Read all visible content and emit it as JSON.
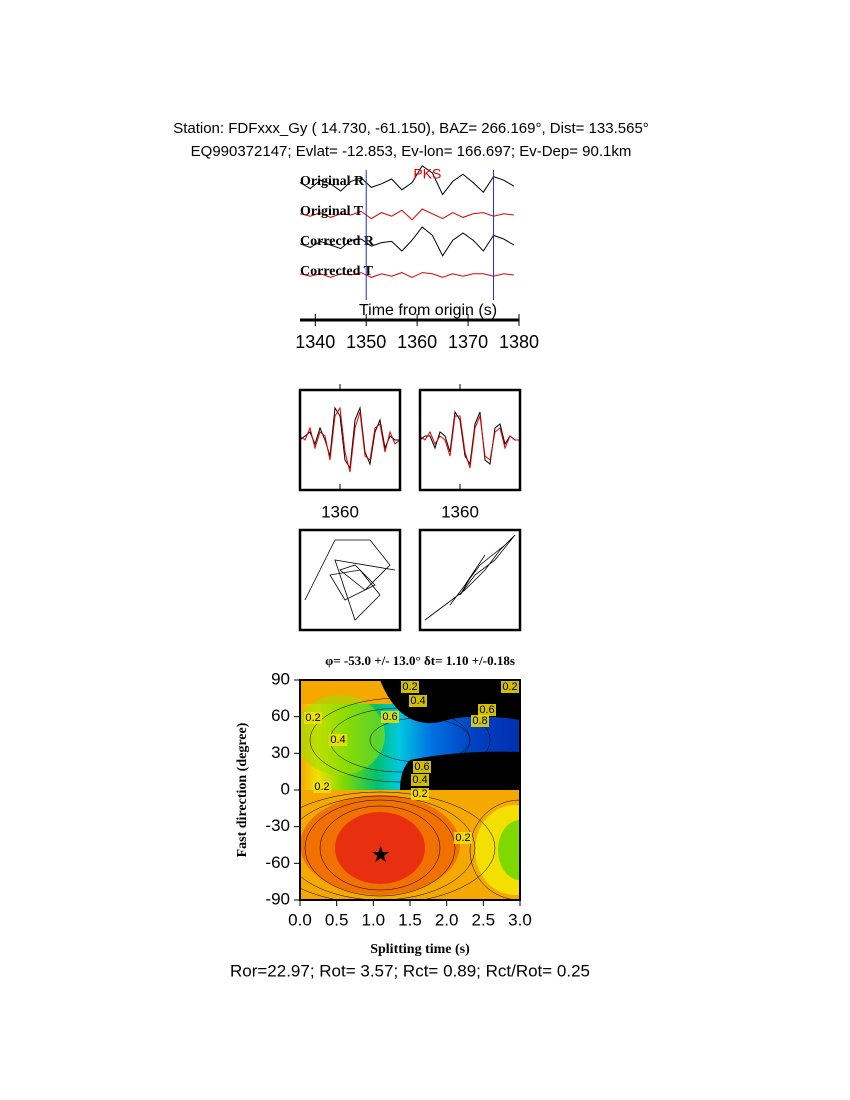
{
  "chart_data": [
    {
      "type": "line",
      "title": "Station: FDFxxx_Gy (  14.730,  -61.150), BAZ=  266.169°, Dist=  133.565°",
      "subtitle": "EQ990372147; Evlat= -12.853, Ev-lon= 166.697; Ev-Dep= 90.1km",
      "xlabel": "Time from origin (s)",
      "annotation": "PKS",
      "annotation_x": 1362,
      "markers": [
        1350,
        1375
      ],
      "xlim": [
        1337,
        1380
      ],
      "xticks": [
        1340,
        1350,
        1360,
        1370,
        1380
      ],
      "x": [
        1337,
        1339,
        1341,
        1343,
        1345,
        1347,
        1349,
        1351,
        1353,
        1355,
        1357,
        1359,
        1361,
        1363,
        1365,
        1367,
        1369,
        1371,
        1373,
        1375,
        1377,
        1379
      ],
      "series": [
        {
          "name": "Original R",
          "color": "#000000",
          "values": [
            0.2,
            -0.3,
            0.4,
            0.1,
            -0.5,
            0.3,
            0.6,
            -0.2,
            0.1,
            0.5,
            -0.4,
            0.2,
            1.6,
            1.0,
            -0.8,
            0.3,
            0.9,
            0.2,
            -0.6,
            0.7,
            0.4,
            -0.1
          ]
        },
        {
          "name": "Original T",
          "color": "#e00000",
          "values": [
            0.1,
            -0.1,
            0.2,
            -0.2,
            0.1,
            0,
            0.3,
            -0.3,
            0.2,
            -0.1,
            0.4,
            -0.4,
            0.5,
            0.1,
            -0.3,
            0.2,
            -0.2,
            0.1,
            0.2,
            -0.1,
            0.1,
            0
          ]
        },
        {
          "name": "Corrected R",
          "color": "#000000",
          "values": [
            0.1,
            -0.2,
            0.3,
            0,
            -0.3,
            0.4,
            0.5,
            -0.1,
            0.2,
            0.3,
            -0.5,
            0.4,
            1.5,
            0.8,
            -0.9,
            0.4,
            1.0,
            0.4,
            -0.5,
            0.8,
            0.5,
            0
          ]
        },
        {
          "name": "Corrected T",
          "color": "#e00000",
          "values": [
            0.1,
            -0.1,
            0.1,
            -0.2,
            0.1,
            0,
            0.2,
            -0.2,
            0.1,
            -0.1,
            0.2,
            -0.2,
            0.2,
            0.1,
            -0.2,
            0.1,
            -0.1,
            0.1,
            0.1,
            -0.1,
            0.1,
            0
          ]
        }
      ]
    },
    {
      "type": "line",
      "xlim": [
        1352,
        1372
      ],
      "xticks": [
        1360
      ],
      "x": [
        1352,
        1353,
        1354,
        1355,
        1356,
        1357,
        1358,
        1359,
        1360,
        1361,
        1362,
        1363,
        1364,
        1365,
        1366,
        1367,
        1368,
        1369,
        1370,
        1371,
        1372
      ],
      "series": [
        {
          "color": "#000000",
          "values": [
            0,
            0.1,
            0.2,
            -0.1,
            0.3,
            0,
            -0.4,
            0.8,
            0.6,
            -0.5,
            -0.7,
            0.5,
            0.8,
            -0.3,
            -0.6,
            0.2,
            0.5,
            -0.2,
            0.1,
            0,
            0
          ]
        },
        {
          "color": "#e00000",
          "values": [
            0.1,
            0,
            0.3,
            -0.2,
            0.2,
            0.1,
            -0.5,
            0.6,
            0.8,
            -0.3,
            -0.8,
            0.3,
            0.7,
            -0.4,
            -0.5,
            0.3,
            0.4,
            -0.3,
            0.2,
            -0.1,
            0
          ]
        }
      ]
    },
    {
      "type": "line",
      "xlim": [
        1352,
        1372
      ],
      "xticks": [
        1360
      ],
      "x": [
        1352,
        1353,
        1354,
        1355,
        1356,
        1357,
        1358,
        1359,
        1360,
        1361,
        1362,
        1363,
        1364,
        1365,
        1366,
        1367,
        1368,
        1369,
        1370,
        1371,
        1372
      ],
      "series": [
        {
          "color": "#000000",
          "values": [
            0,
            0.1,
            0.1,
            -0.2,
            0.2,
            0.1,
            -0.3,
            0.7,
            0.5,
            -0.4,
            -0.6,
            0.4,
            0.7,
            -0.5,
            -0.6,
            0.3,
            0.4,
            -0.1,
            0.1,
            0,
            0
          ]
        },
        {
          "color": "#e00000",
          "values": [
            0.1,
            0,
            0.2,
            -0.1,
            0.1,
            0,
            -0.4,
            0.6,
            0.6,
            -0.3,
            -0.7,
            0.3,
            0.6,
            -0.4,
            -0.5,
            0.2,
            0.3,
            -0.2,
            0.1,
            0,
            0
          ]
        }
      ]
    },
    {
      "type": "particle",
      "xlim": [
        -1,
        1
      ],
      "ylim": [
        -1,
        1
      ],
      "series": [
        {
          "color": "#000000",
          "x": [
            -0.9,
            -0.3,
            0.4,
            0.8,
            0.3,
            -0.2,
            0.1,
            0.5,
            -0.1,
            -0.4,
            0.2,
            0.6,
            0.1,
            -0.3,
            0.9
          ],
          "values": [
            -0.4,
            0.8,
            0.8,
            0.3,
            -0.2,
            0.2,
            0.3,
            -0.1,
            -0.4,
            0.1,
            0.2,
            -0.3,
            -0.8,
            0.4,
            0.2
          ]
        }
      ]
    },
    {
      "type": "particle",
      "xlim": [
        -1,
        1
      ],
      "ylim": [
        -1,
        1
      ],
      "series": [
        {
          "color": "#000000",
          "x": [
            -0.9,
            -0.5,
            -0.1,
            0.3,
            0.6,
            0.9,
            0.5,
            0.1,
            -0.2,
            0.1,
            0.3,
            -0.1,
            -0.4,
            0.2,
            0.7
          ],
          "values": [
            -0.8,
            -0.5,
            -0.2,
            0.2,
            0.6,
            0.9,
            0.4,
            0.1,
            -0.3,
            0.2,
            0.5,
            -0.1,
            -0.5,
            0.3,
            0.7
          ]
        }
      ]
    },
    {
      "type": "contour",
      "title": "φ= -53.0 +/- 13.0° δt= 1.10 +/-0.18s",
      "xlabel": "Splitting time (s)",
      "ylabel": "Fast direction (degree)",
      "xlim": [
        0,
        3
      ],
      "ylim": [
        -90,
        90
      ],
      "xticks": [
        {
          "value": 0,
          "label": "0.0"
        },
        {
          "value": 0.5,
          "label": "0.5"
        },
        {
          "value": 1,
          "label": "1.0"
        },
        {
          "value": 1.5,
          "label": "1.5"
        },
        {
          "value": 2,
          "label": "2.0"
        },
        {
          "value": 2.5,
          "label": "2.5"
        },
        {
          "value": 3,
          "label": "3.0"
        }
      ],
      "yticks": [
        -90,
        -60,
        -30,
        0,
        30,
        60,
        90
      ],
      "best_x": 1.1,
      "best_y": -53,
      "contour_labels": [
        0.2,
        0.2,
        0.2,
        0.2,
        0.2,
        0.2,
        0.4,
        0.4,
        0.4,
        0.6,
        0.6,
        0.6,
        0.8
      ],
      "note": "Ror=22.97; Rot= 3.57; Rct= 0.89; Rct/Rot= 0.25"
    }
  ]
}
